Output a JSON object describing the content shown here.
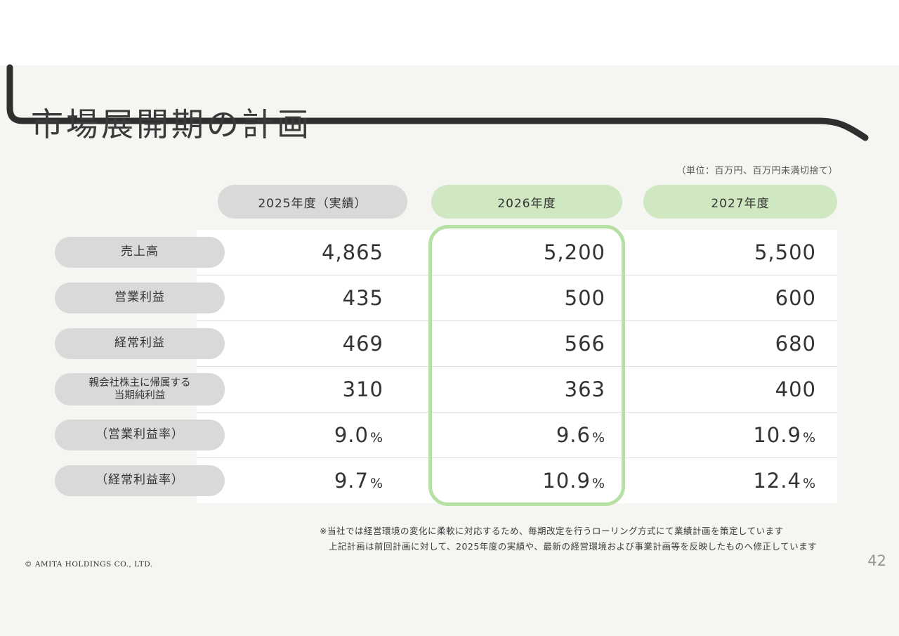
{
  "slide": {
    "title": "市場展開期の計画",
    "unit_note": "（単位：百万円、百万円未満切捨て）",
    "page_number": "42",
    "copyright": "© AMITA HOLDINGS CO., LTD.",
    "footnote_line1": "※当社では経営環境の変化に柔軟に対応するため、毎期改定を行うローリング方式にて業績計画を策定しています",
    "footnote_line2": "上記計画は前回計画に対して、2025年度の実績や、最新の経営環境および事業計画等を反映したものへ修正しています"
  },
  "table": {
    "columns": [
      {
        "label": "2025年度（実績）",
        "style": "gray",
        "highlighted": false
      },
      {
        "label": "2026年度",
        "style": "green",
        "highlighted": true
      },
      {
        "label": "2027年度",
        "style": "green",
        "highlighted": false
      }
    ],
    "rows": [
      {
        "label": "売上高",
        "values": [
          "4,865",
          "5,200",
          "5,500"
        ]
      },
      {
        "label": "営業利益",
        "values": [
          "435",
          "500",
          "600"
        ]
      },
      {
        "label": "経常利益",
        "values": [
          "469",
          "566",
          "680"
        ]
      },
      {
        "label": "親会社株主に帰属する\n当期純利益",
        "values": [
          "310",
          "363",
          "400"
        ]
      },
      {
        "label": "（営業利益率）",
        "values": [
          "9.0%",
          "9.6%",
          "10.9%"
        ]
      },
      {
        "label": "（経常利益率）",
        "values": [
          "9.7%",
          "10.9%",
          "12.4%"
        ]
      }
    ]
  },
  "colors": {
    "gray_pill": "#d9d9d9",
    "green_pill": "#cfe8c2",
    "highlight_border": "#b7e0a5",
    "accent_dark": "#2f2f2f",
    "background": "#f5f5f2"
  }
}
